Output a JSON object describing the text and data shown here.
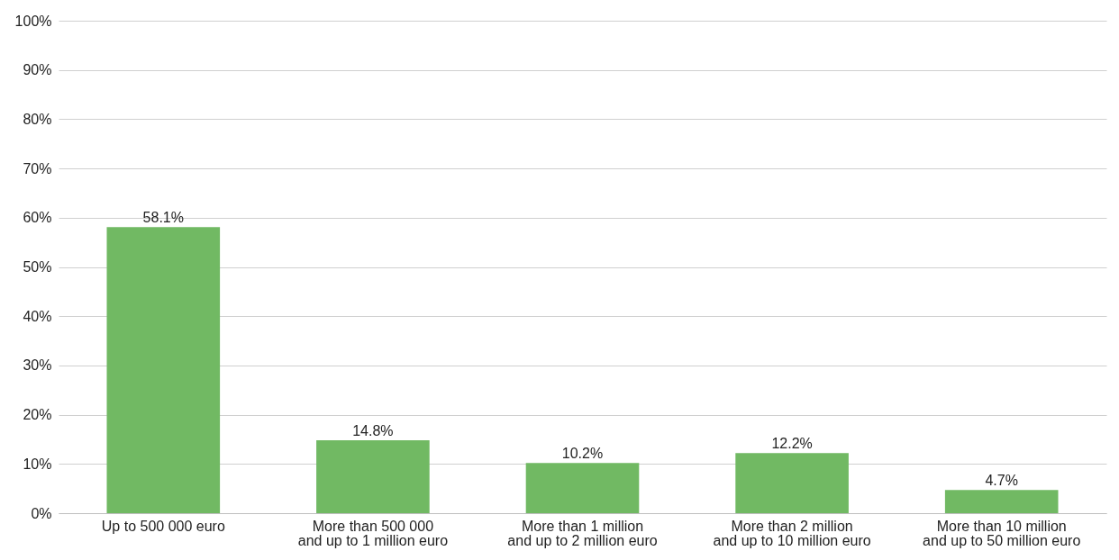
{
  "chart_data": {
    "type": "bar",
    "categories": [
      "Up to 500 000 euro",
      "More than 500 000\nand up to 1 million euro",
      "More than 1 million\nand up to 2 million euro",
      "More than 2 million\nand up to 10 million euro",
      "More than 10 million\nand up to 50 million euro"
    ],
    "values": [
      58.1,
      14.8,
      10.2,
      12.2,
      4.7
    ],
    "value_labels": [
      "58.1%",
      "14.8%",
      "10.2%",
      "12.2%",
      "4.7%"
    ],
    "color": "#71b963",
    "ylim": [
      0,
      100
    ],
    "yticks": [
      {
        "value": 0,
        "label": "0%"
      },
      {
        "value": 10,
        "label": "10%"
      },
      {
        "value": 20,
        "label": "20%"
      },
      {
        "value": 30,
        "label": "30%"
      },
      {
        "value": 40,
        "label": "40%"
      },
      {
        "value": 50,
        "label": "50%"
      },
      {
        "value": 60,
        "label": "60%"
      },
      {
        "value": 70,
        "label": "70%"
      },
      {
        "value": 80,
        "label": "80%"
      },
      {
        "value": 90,
        "label": "90%"
      },
      {
        "value": 100,
        "label": "100%"
      }
    ],
    "grid": "y"
  }
}
